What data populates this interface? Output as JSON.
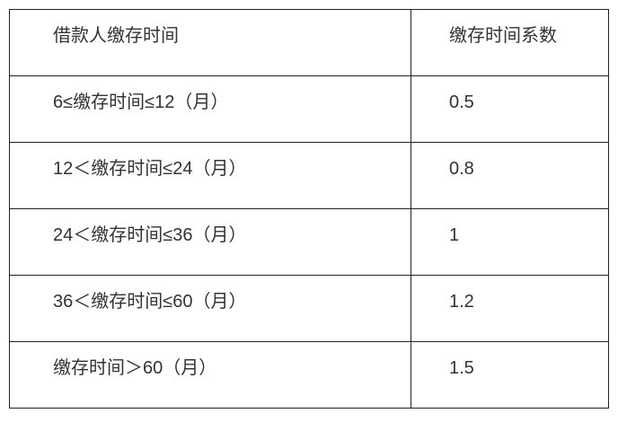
{
  "table": {
    "columns": [
      {
        "header": "借款人缴存时间"
      },
      {
        "header": "缴存时间系数"
      }
    ],
    "rows": [
      {
        "range": "6≤缴存时间≤12（月）",
        "coefficient": "0.5"
      },
      {
        "range": "12＜缴存时间≤24（月）",
        "coefficient": "0.8"
      },
      {
        "range": "24＜缴存时间≤36（月）",
        "coefficient": "1"
      },
      {
        "range": "36＜缴存时间≤60（月）",
        "coefficient": "1.2"
      },
      {
        "range": "缴存时间＞60（月）",
        "coefficient": "1.5"
      }
    ],
    "colors": {
      "border": "#222222",
      "text": "#333333",
      "background": "#ffffff"
    }
  }
}
